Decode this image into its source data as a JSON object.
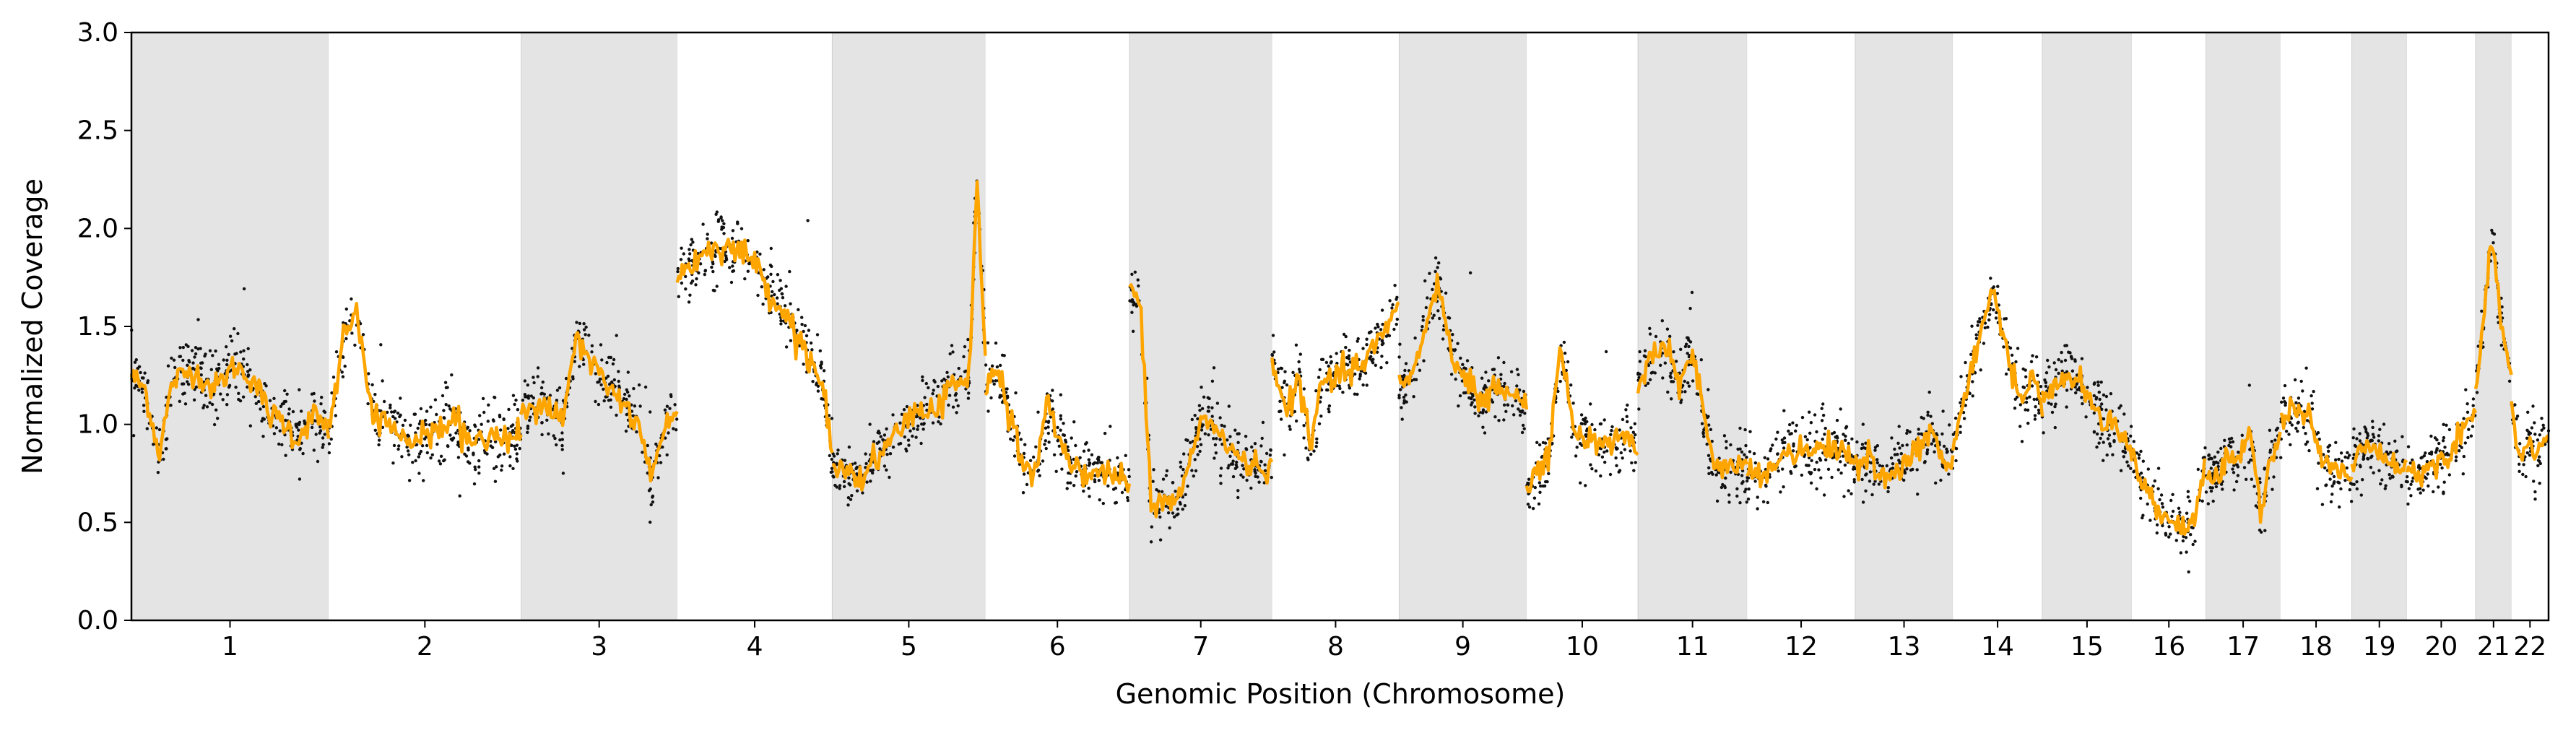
{
  "chart_data": {
    "type": "scatter",
    "title": "",
    "xlabel": "Genomic Position (Chromosome)",
    "ylabel": "Normalized Coverage",
    "ylim": [
      0,
      3.0
    ],
    "yticks": [
      "0.0",
      "0.5",
      "1.0",
      "1.5",
      "2.0",
      "2.5",
      "3.0"
    ],
    "grid": false,
    "legend": "none",
    "chromosome_band_colors": [
      "#e4e4e4",
      "#ffffff"
    ],
    "colors": {
      "points": "#111111",
      "segments": "#ffa500",
      "band_edge": "#cfcfcf"
    },
    "chromosomes": [
      {
        "label": "1",
        "start": 0.0,
        "end": 143.3,
        "profile": [
          [
            0,
            1.25
          ],
          [
            10,
            1.18
          ],
          [
            20,
            0.85
          ],
          [
            30,
            1.22
          ],
          [
            45,
            1.28
          ],
          [
            60,
            1.18
          ],
          [
            75,
            1.3
          ],
          [
            90,
            1.22
          ],
          [
            100,
            1.05
          ],
          [
            110,
            1.02
          ],
          [
            120,
            0.92
          ],
          [
            132,
            1.05
          ],
          [
            143.3,
            0.98
          ]
        ]
      },
      {
        "label": "2",
        "start": 143.3,
        "end": 283.3,
        "profile": [
          [
            0,
            0.98
          ],
          [
            12,
            1.45
          ],
          [
            20,
            1.58
          ],
          [
            30,
            1.1
          ],
          [
            45,
            0.98
          ],
          [
            60,
            0.9
          ],
          [
            75,
            0.95
          ],
          [
            90,
            1.02
          ],
          [
            105,
            0.9
          ],
          [
            120,
            0.93
          ],
          [
            140,
            0.95
          ]
        ]
      },
      {
        "label": "3",
        "start": 283.3,
        "end": 396.7,
        "profile": [
          [
            0,
            1.05
          ],
          [
            15,
            1.12
          ],
          [
            30,
            1.0
          ],
          [
            40,
            1.45
          ],
          [
            55,
            1.25
          ],
          [
            70,
            1.15
          ],
          [
            85,
            1.0
          ],
          [
            95,
            0.72
          ],
          [
            105,
            1.0
          ],
          [
            113.4,
            1.05
          ]
        ]
      },
      {
        "label": "4",
        "start": 396.7,
        "end": 509.4,
        "profile": [
          [
            0,
            1.75
          ],
          [
            15,
            1.85
          ],
          [
            30,
            1.92
          ],
          [
            45,
            1.88
          ],
          [
            55,
            1.85
          ],
          [
            65,
            1.7
          ],
          [
            80,
            1.55
          ],
          [
            95,
            1.35
          ],
          [
            105,
            1.22
          ],
          [
            112.7,
            0.85
          ]
        ]
      },
      {
        "label": "5",
        "start": 509.4,
        "end": 620.7,
        "profile": [
          [
            0,
            0.8
          ],
          [
            15,
            0.72
          ],
          [
            30,
            0.78
          ],
          [
            45,
            0.95
          ],
          [
            60,
            1.05
          ],
          [
            75,
            1.08
          ],
          [
            85,
            1.2
          ],
          [
            100,
            1.25
          ],
          [
            105,
            2.25
          ],
          [
            111.3,
            1.35
          ]
        ]
      },
      {
        "label": "6",
        "start": 620.7,
        "end": 725.5,
        "profile": [
          [
            0,
            1.2
          ],
          [
            10,
            1.28
          ],
          [
            20,
            1.0
          ],
          [
            28,
            0.78
          ],
          [
            35,
            0.72
          ],
          [
            45,
            1.1
          ],
          [
            60,
            0.82
          ],
          [
            75,
            0.75
          ],
          [
            90,
            0.75
          ],
          [
            104.8,
            0.72
          ]
        ]
      },
      {
        "label": "7",
        "start": 725.5,
        "end": 829.1,
        "profile": [
          [
            0,
            1.7
          ],
          [
            8,
            1.6
          ],
          [
            16,
            0.55
          ],
          [
            25,
            0.62
          ],
          [
            35,
            0.6
          ],
          [
            45,
            0.85
          ],
          [
            55,
            1.05
          ],
          [
            70,
            0.9
          ],
          [
            85,
            0.8
          ],
          [
            103.6,
            0.78
          ]
        ]
      },
      {
        "label": "8",
        "start": 829.1,
        "end": 921.5,
        "profile": [
          [
            0,
            1.35
          ],
          [
            10,
            1.05
          ],
          [
            20,
            1.25
          ],
          [
            28,
            0.85
          ],
          [
            35,
            1.2
          ],
          [
            50,
            1.25
          ],
          [
            65,
            1.3
          ],
          [
            80,
            1.45
          ],
          [
            92.4,
            1.6
          ]
        ]
      },
      {
        "label": "9",
        "start": 921.5,
        "end": 1014.1,
        "profile": [
          [
            0,
            1.2
          ],
          [
            10,
            1.25
          ],
          [
            20,
            1.55
          ],
          [
            28,
            1.7
          ],
          [
            38,
            1.35
          ],
          [
            50,
            1.22
          ],
          [
            60,
            1.1
          ],
          [
            70,
            1.2
          ],
          [
            82,
            1.15
          ],
          [
            92.6,
            1.1
          ]
        ]
      },
      {
        "label": "10",
        "start": 1014.1,
        "end": 1095.1,
        "profile": [
          [
            0,
            0.65
          ],
          [
            8,
            0.75
          ],
          [
            16,
            0.85
          ],
          [
            25,
            1.4
          ],
          [
            35,
            0.95
          ],
          [
            45,
            0.92
          ],
          [
            60,
            0.88
          ],
          [
            70,
            0.95
          ],
          [
            81,
            0.9
          ]
        ]
      },
      {
        "label": "11",
        "start": 1095.1,
        "end": 1174.4,
        "profile": [
          [
            0,
            1.2
          ],
          [
            10,
            1.35
          ],
          [
            20,
            1.4
          ],
          [
            30,
            1.2
          ],
          [
            40,
            1.35
          ],
          [
            48,
            1.05
          ],
          [
            55,
            0.78
          ],
          [
            65,
            0.78
          ],
          [
            79.3,
            0.78
          ]
        ]
      },
      {
        "label": "12",
        "start": 1174.4,
        "end": 1253.0,
        "profile": [
          [
            0,
            0.76
          ],
          [
            10,
            0.72
          ],
          [
            20,
            0.8
          ],
          [
            30,
            0.88
          ],
          [
            45,
            0.85
          ],
          [
            60,
            0.9
          ],
          [
            70,
            0.85
          ],
          [
            78.6,
            0.82
          ]
        ]
      },
      {
        "label": "13",
        "start": 1253.0,
        "end": 1324.0,
        "profile": [
          [
            0,
            0.8
          ],
          [
            10,
            0.82
          ],
          [
            20,
            0.72
          ],
          [
            30,
            0.78
          ],
          [
            45,
            0.88
          ],
          [
            55,
            0.95
          ],
          [
            65,
            0.82
          ],
          [
            71,
            0.8
          ]
        ]
      },
      {
        "label": "14",
        "start": 1324.0,
        "end": 1389.0,
        "profile": [
          [
            0,
            0.85
          ],
          [
            10,
            1.2
          ],
          [
            20,
            1.45
          ],
          [
            30,
            1.7
          ],
          [
            40,
            1.35
          ],
          [
            50,
            1.1
          ],
          [
            58,
            1.25
          ],
          [
            65,
            1.05
          ]
        ]
      },
      {
        "label": "15",
        "start": 1389.0,
        "end": 1454.0,
        "profile": [
          [
            0,
            1.15
          ],
          [
            10,
            1.2
          ],
          [
            20,
            1.25
          ],
          [
            30,
            1.18
          ],
          [
            40,
            1.08
          ],
          [
            50,
            1.0
          ],
          [
            58,
            0.95
          ],
          [
            65,
            0.88
          ]
        ]
      },
      {
        "label": "16",
        "start": 1454.0,
        "end": 1508.0,
        "profile": [
          [
            0,
            0.88
          ],
          [
            8,
            0.7
          ],
          [
            15,
            0.62
          ],
          [
            22,
            0.55
          ],
          [
            30,
            0.5
          ],
          [
            38,
            0.48
          ],
          [
            46,
            0.52
          ],
          [
            54,
            0.82
          ]
        ]
      },
      {
        "label": "17",
        "start": 1508.0,
        "end": 1562.0,
        "profile": [
          [
            0,
            0.72
          ],
          [
            8,
            0.75
          ],
          [
            16,
            0.85
          ],
          [
            24,
            0.8
          ],
          [
            32,
            0.95
          ],
          [
            40,
            0.55
          ],
          [
            48,
            0.85
          ],
          [
            54,
            0.95
          ]
        ]
      },
      {
        "label": "18",
        "start": 1562.0,
        "end": 1614.0,
        "profile": [
          [
            0,
            1.05
          ],
          [
            10,
            1.05
          ],
          [
            20,
            1.05
          ],
          [
            30,
            0.8
          ],
          [
            40,
            0.75
          ],
          [
            52,
            0.72
          ]
        ]
      },
      {
        "label": "19",
        "start": 1614.0,
        "end": 1654.0,
        "profile": [
          [
            0,
            0.82
          ],
          [
            10,
            0.88
          ],
          [
            20,
            0.85
          ],
          [
            30,
            0.8
          ],
          [
            40,
            0.78
          ]
        ]
      },
      {
        "label": "20",
        "start": 1654.0,
        "end": 1704.0,
        "profile": [
          [
            0,
            0.78
          ],
          [
            10,
            0.75
          ],
          [
            20,
            0.8
          ],
          [
            30,
            0.85
          ],
          [
            40,
            0.95
          ],
          [
            50,
            1.1
          ]
        ]
      },
      {
        "label": "21",
        "start": 1704.0,
        "end": 1730.0,
        "profile": [
          [
            0,
            1.2
          ],
          [
            6,
            1.55
          ],
          [
            12,
            1.95
          ],
          [
            18,
            1.55
          ],
          [
            26,
            1.25
          ]
        ]
      },
      {
        "label": "22",
        "start": 1730.0,
        "end": 1757.0,
        "profile": [
          [
            0,
            1.1
          ],
          [
            6,
            0.82
          ],
          [
            12,
            0.9
          ],
          [
            18,
            0.85
          ],
          [
            27,
            0.95
          ]
        ]
      }
    ]
  }
}
